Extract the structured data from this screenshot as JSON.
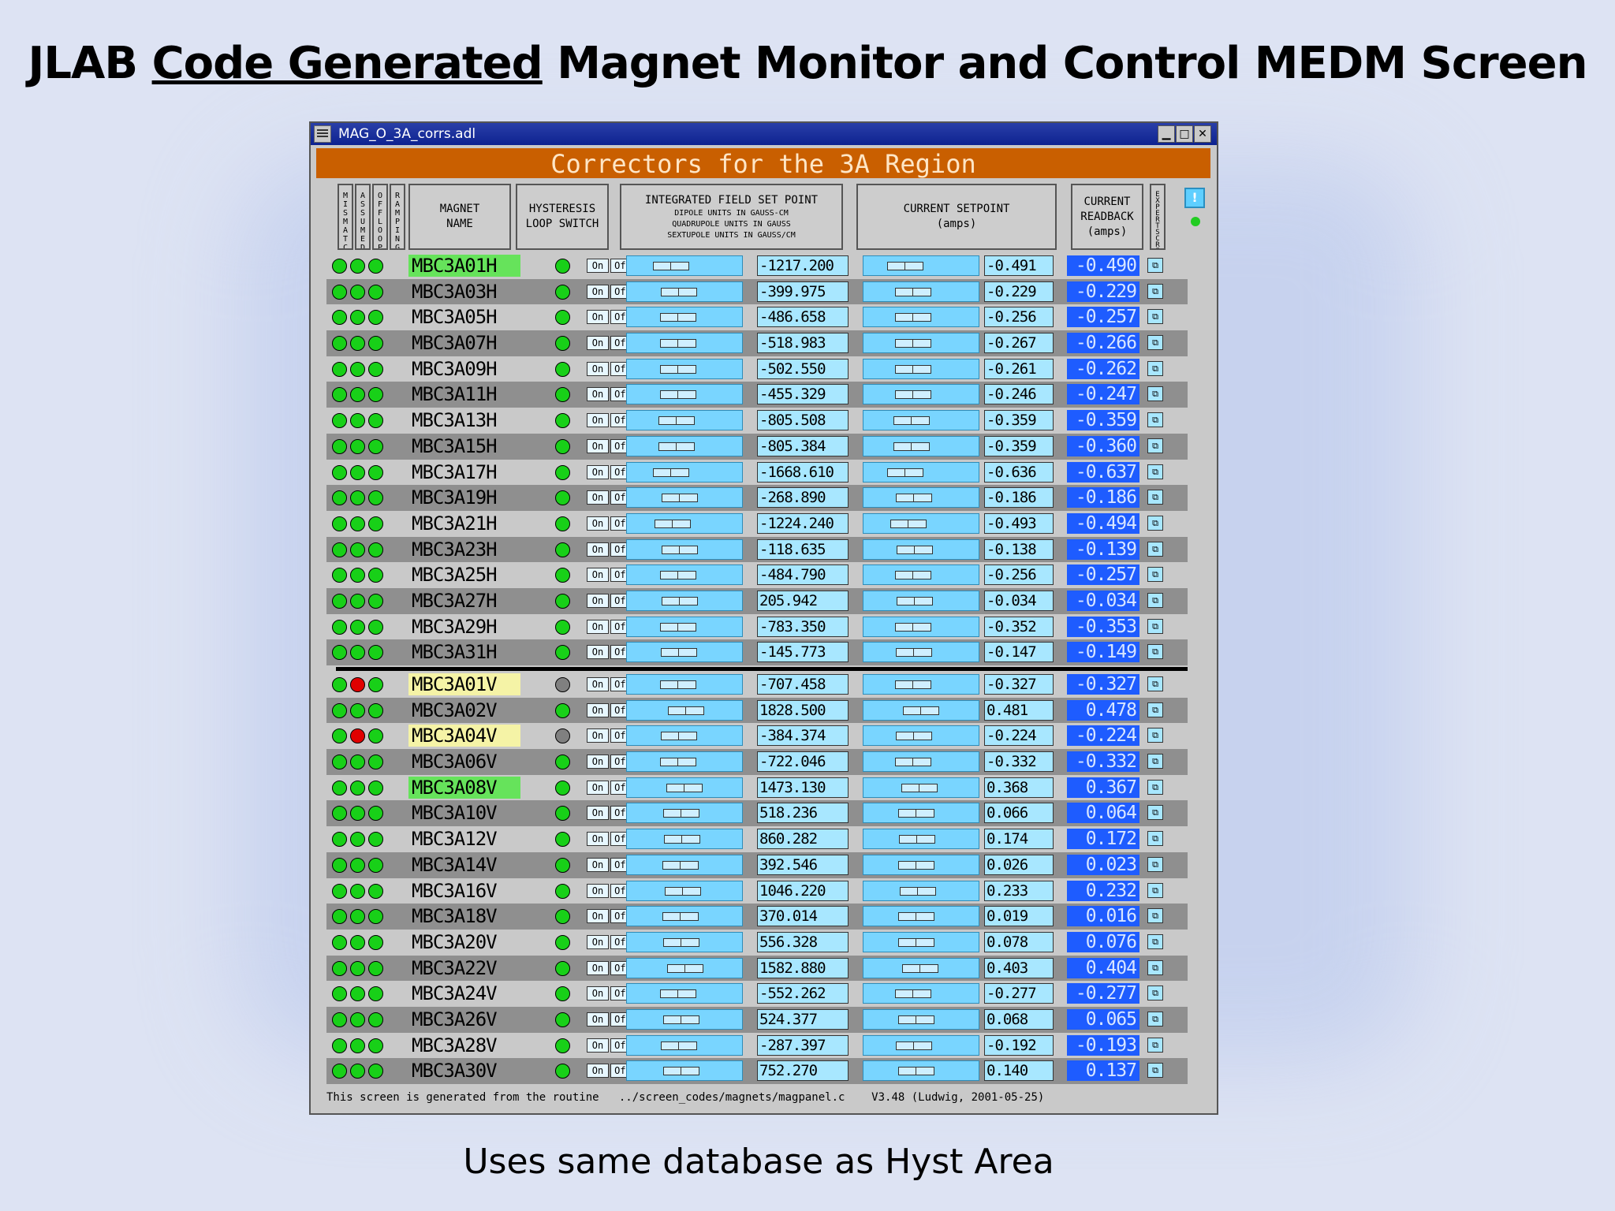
{
  "slide": {
    "title_pre": "JLAB ",
    "title_underlined": "Code Generated",
    "title_post": " Magnet Monitor and Control MEDM Screen",
    "caption": "Uses same database as Hyst Area"
  },
  "window": {
    "title": "MAG_O_3A_corrs.adl",
    "region_title": "Correctors for the 3A Region"
  },
  "headers": {
    "mismatch": "MISMATCH",
    "assumed": "ASSUMED",
    "off_loop": "OFFLOOP",
    "ramping": "RAMPING",
    "magnet_name_1": "MAGNET",
    "magnet_name_2": "NAME",
    "hysteresis_1": "HYSTERESIS",
    "hysteresis_2": "LOOP SWITCH",
    "ifsp_1": "INTEGRATED FIELD SET POINT",
    "ifsp_2": "DIPOLE UNITS IN GAUSS-CM",
    "ifsp_3": "QUADRUPOLE UNITS IN GAUSS",
    "ifsp_4": "SEXTUPOLE UNITS IN GAUSS/CM",
    "csp_1": "CURRENT SETPOINT",
    "csp_2": "(amps)",
    "crb_1": "CURRENT",
    "crb_2": "READBACK",
    "crb_3": "(amps)",
    "expert": "EXPERT SCREENS",
    "info": "!"
  },
  "buttons": {
    "on": "On",
    "off": "Off",
    "expert": "⧉"
  },
  "colors": {
    "led_ok": "#18d018",
    "led_alarm": "#e00000",
    "led_off": "#808080",
    "readback": "#1e5cff",
    "region": "#c95f00"
  },
  "magnets": [
    {
      "name": "MBC3A01H",
      "field": "-1217.200",
      "setpoint": "-0.491",
      "readback": "-0.490",
      "leds": [
        "ok",
        "ok",
        "ok"
      ],
      "hyst": "ok",
      "hl": "good",
      "f_pos": 0.33,
      "c_pos": 0.3
    },
    {
      "name": "MBC3A03H",
      "field": "-399.975",
      "setpoint": "-0.229",
      "readback": "-0.229",
      "leds": [
        "ok",
        "ok",
        "ok"
      ],
      "hyst": "ok",
      "hl": "",
      "f_pos": 0.43,
      "c_pos": 0.4
    },
    {
      "name": "MBC3A05H",
      "field": "-486.658",
      "setpoint": "-0.256",
      "readback": "-0.257",
      "leds": [
        "ok",
        "ok",
        "ok"
      ],
      "hyst": "ok",
      "hl": "",
      "f_pos": 0.42,
      "c_pos": 0.4
    },
    {
      "name": "MBC3A07H",
      "field": "-518.983",
      "setpoint": "-0.267",
      "readback": "-0.266",
      "leds": [
        "ok",
        "ok",
        "ok"
      ],
      "hyst": "ok",
      "hl": "",
      "f_pos": 0.42,
      "c_pos": 0.4
    },
    {
      "name": "MBC3A09H",
      "field": "-502.550",
      "setpoint": "-0.261",
      "readback": "-0.262",
      "leds": [
        "ok",
        "ok",
        "ok"
      ],
      "hyst": "ok",
      "hl": "",
      "f_pos": 0.42,
      "c_pos": 0.4
    },
    {
      "name": "MBC3A11H",
      "field": "-455.329",
      "setpoint": "-0.246",
      "readback": "-0.247",
      "leds": [
        "ok",
        "ok",
        "ok"
      ],
      "hyst": "ok",
      "hl": "",
      "f_pos": 0.42,
      "c_pos": 0.4
    },
    {
      "name": "MBC3A13H",
      "field": "-805.508",
      "setpoint": "-0.359",
      "readback": "-0.359",
      "leds": [
        "ok",
        "ok",
        "ok"
      ],
      "hyst": "ok",
      "hl": "",
      "f_pos": 0.4,
      "c_pos": 0.38
    },
    {
      "name": "MBC3A15H",
      "field": "-805.384",
      "setpoint": "-0.359",
      "readback": "-0.360",
      "leds": [
        "ok",
        "ok",
        "ok"
      ],
      "hyst": "ok",
      "hl": "",
      "f_pos": 0.4,
      "c_pos": 0.38
    },
    {
      "name": "MBC3A17H",
      "field": "-1668.610",
      "setpoint": "-0.636",
      "readback": "-0.637",
      "leds": [
        "ok",
        "ok",
        "ok"
      ],
      "hyst": "ok",
      "hl": "",
      "f_pos": 0.33,
      "c_pos": 0.3
    },
    {
      "name": "MBC3A19H",
      "field": "-268.890",
      "setpoint": "-0.186",
      "readback": "-0.186",
      "leds": [
        "ok",
        "ok",
        "ok"
      ],
      "hyst": "ok",
      "hl": "",
      "f_pos": 0.44,
      "c_pos": 0.41
    },
    {
      "name": "MBC3A21H",
      "field": "-1224.240",
      "setpoint": "-0.493",
      "readback": "-0.494",
      "leds": [
        "ok",
        "ok",
        "ok"
      ],
      "hyst": "ok",
      "hl": "",
      "f_pos": 0.35,
      "c_pos": 0.34
    },
    {
      "name": "MBC3A23H",
      "field": "-118.635",
      "setpoint": "-0.138",
      "readback": "-0.139",
      "leds": [
        "ok",
        "ok",
        "ok"
      ],
      "hyst": "ok",
      "hl": "",
      "f_pos": 0.44,
      "c_pos": 0.42
    },
    {
      "name": "MBC3A25H",
      "field": "-484.790",
      "setpoint": "-0.256",
      "readback": "-0.257",
      "leds": [
        "ok",
        "ok",
        "ok"
      ],
      "hyst": "ok",
      "hl": "",
      "f_pos": 0.42,
      "c_pos": 0.4
    },
    {
      "name": "MBC3A27H",
      "field": "205.942",
      "setpoint": "-0.034",
      "readback": "-0.034",
      "leds": [
        "ok",
        "ok",
        "ok"
      ],
      "hyst": "ok",
      "hl": "",
      "f_pos": 0.44,
      "c_pos": 0.42
    },
    {
      "name": "MBC3A29H",
      "field": "-783.350",
      "setpoint": "-0.352",
      "readback": "-0.353",
      "leds": [
        "ok",
        "ok",
        "ok"
      ],
      "hyst": "ok",
      "hl": "",
      "f_pos": 0.42,
      "c_pos": 0.4
    },
    {
      "name": "MBC3A31H",
      "field": "-145.773",
      "setpoint": "-0.147",
      "readback": "-0.149",
      "leds": [
        "ok",
        "ok",
        "ok"
      ],
      "hyst": "ok",
      "hl": "",
      "f_pos": 0.43,
      "c_pos": 0.41
    },
    {
      "name": "MBC3A01V",
      "field": "-707.458",
      "setpoint": "-0.327",
      "readback": "-0.327",
      "leds": [
        "ok",
        "alarm",
        "ok"
      ],
      "hyst": "off",
      "hl": "warn",
      "f_pos": 0.42,
      "c_pos": 0.4
    },
    {
      "name": "MBC3A02V",
      "field": "1828.500",
      "setpoint": "0.481",
      "readback": "0.478",
      "leds": [
        "ok",
        "ok",
        "ok"
      ],
      "hyst": "ok",
      "hl": "",
      "f_pos": 0.52,
      "c_pos": 0.5
    },
    {
      "name": "MBC3A04V",
      "field": "-384.374",
      "setpoint": "-0.224",
      "readback": "-0.224",
      "leds": [
        "ok",
        "alarm",
        "ok"
      ],
      "hyst": "off",
      "hl": "warn",
      "f_pos": 0.43,
      "c_pos": 0.41
    },
    {
      "name": "MBC3A06V",
      "field": "-722.046",
      "setpoint": "-0.332",
      "readback": "-0.332",
      "leds": [
        "ok",
        "ok",
        "ok"
      ],
      "hyst": "ok",
      "hl": "",
      "f_pos": 0.42,
      "c_pos": 0.4
    },
    {
      "name": "MBC3A08V",
      "field": "1473.130",
      "setpoint": "0.368",
      "readback": "0.367",
      "leds": [
        "ok",
        "ok",
        "ok"
      ],
      "hyst": "ok",
      "hl": "good",
      "f_pos": 0.5,
      "c_pos": 0.48
    },
    {
      "name": "MBC3A10V",
      "field": "518.236",
      "setpoint": "0.066",
      "readback": "0.064",
      "leds": [
        "ok",
        "ok",
        "ok"
      ],
      "hyst": "ok",
      "hl": "",
      "f_pos": 0.46,
      "c_pos": 0.44
    },
    {
      "name": "MBC3A12V",
      "field": "860.282",
      "setpoint": "0.174",
      "readback": "0.172",
      "leds": [
        "ok",
        "ok",
        "ok"
      ],
      "hyst": "ok",
      "hl": "",
      "f_pos": 0.47,
      "c_pos": 0.45
    },
    {
      "name": "MBC3A14V",
      "field": "392.546",
      "setpoint": "0.026",
      "readback": "0.023",
      "leds": [
        "ok",
        "ok",
        "ok"
      ],
      "hyst": "ok",
      "hl": "",
      "f_pos": 0.45,
      "c_pos": 0.44
    },
    {
      "name": "MBC3A16V",
      "field": "1046.220",
      "setpoint": "0.233",
      "readback": "0.232",
      "leds": [
        "ok",
        "ok",
        "ok"
      ],
      "hyst": "ok",
      "hl": "",
      "f_pos": 0.48,
      "c_pos": 0.46
    },
    {
      "name": "MBC3A18V",
      "field": "370.014",
      "setpoint": "0.019",
      "readback": "0.016",
      "leds": [
        "ok",
        "ok",
        "ok"
      ],
      "hyst": "ok",
      "hl": "",
      "f_pos": 0.45,
      "c_pos": 0.44
    },
    {
      "name": "MBC3A20V",
      "field": "556.328",
      "setpoint": "0.078",
      "readback": "0.076",
      "leds": [
        "ok",
        "ok",
        "ok"
      ],
      "hyst": "ok",
      "hl": "",
      "f_pos": 0.46,
      "c_pos": 0.44
    },
    {
      "name": "MBC3A22V",
      "field": "1582.880",
      "setpoint": "0.403",
      "readback": "0.404",
      "leds": [
        "ok",
        "ok",
        "ok"
      ],
      "hyst": "ok",
      "hl": "",
      "f_pos": 0.51,
      "c_pos": 0.49
    },
    {
      "name": "MBC3A24V",
      "field": "-552.262",
      "setpoint": "-0.277",
      "readback": "-0.277",
      "leds": [
        "ok",
        "ok",
        "ok"
      ],
      "hyst": "ok",
      "hl": "",
      "f_pos": 0.42,
      "c_pos": 0.4
    },
    {
      "name": "MBC3A26V",
      "field": "524.377",
      "setpoint": "0.068",
      "readback": "0.065",
      "leds": [
        "ok",
        "ok",
        "ok"
      ],
      "hyst": "ok",
      "hl": "",
      "f_pos": 0.46,
      "c_pos": 0.44
    },
    {
      "name": "MBC3A28V",
      "field": "-287.397",
      "setpoint": "-0.192",
      "readback": "-0.193",
      "leds": [
        "ok",
        "ok",
        "ok"
      ],
      "hyst": "ok",
      "hl": "",
      "f_pos": 0.43,
      "c_pos": 0.41
    },
    {
      "name": "MBC3A30V",
      "field": "752.270",
      "setpoint": "0.140",
      "readback": "0.137",
      "leds": [
        "ok",
        "ok",
        "ok"
      ],
      "hyst": "ok",
      "hl": "",
      "f_pos": 0.46,
      "c_pos": 0.44
    }
  ],
  "footer": "This screen is generated from the routine   ../screen_codes/magnets/magpanel.c    V3.48 (Ludwig, 2001-05-25)"
}
